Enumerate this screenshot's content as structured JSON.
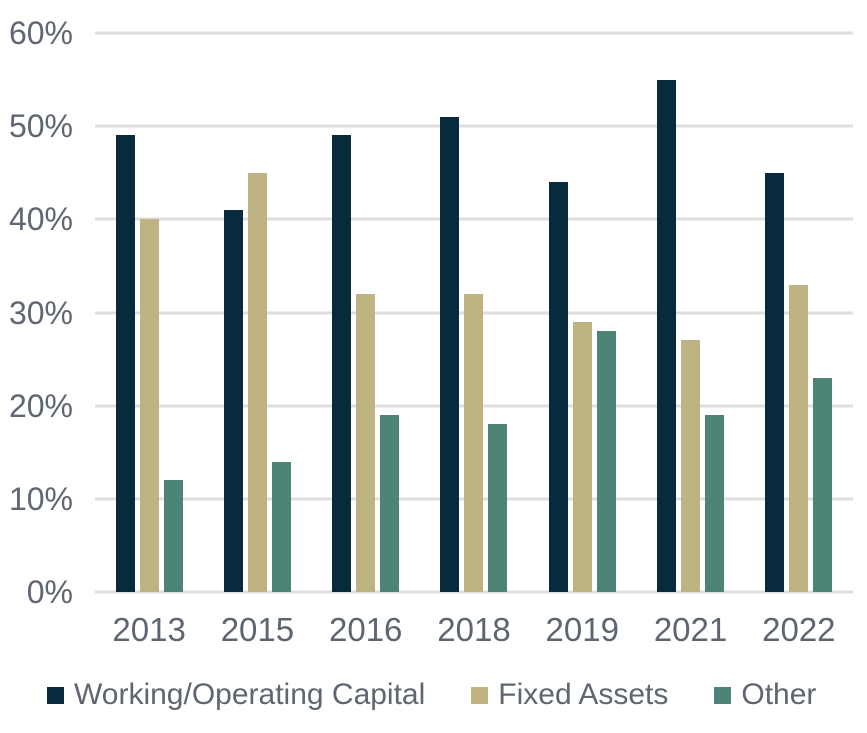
{
  "chart_data": {
    "type": "bar",
    "title": "",
    "categories": [
      "2013",
      "2015",
      "2016",
      "2018",
      "2019",
      "2021",
      "2022"
    ],
    "series": [
      {
        "name": "Working/Operating Capital",
        "color": "#072a3c",
        "values": [
          49,
          41,
          49,
          51,
          44,
          55,
          45
        ]
      },
      {
        "name": "Fixed Assets",
        "color": "#c0b383",
        "values": [
          40,
          45,
          32,
          32,
          29,
          27,
          33
        ]
      },
      {
        "name": "Other",
        "color": "#4e8478",
        "values": [
          12,
          14,
          19,
          18,
          28,
          19,
          23
        ]
      }
    ],
    "xlabel": "",
    "ylabel": "",
    "ylim": [
      0,
      60
    ],
    "y_tick_step": 10,
    "y_tick_labels": [
      "0%",
      "10%",
      "20%",
      "30%",
      "40%",
      "50%",
      "60%"
    ],
    "grid": true,
    "legend_position": "bottom"
  },
  "colors": {
    "gridline": "#dedede",
    "axis_text": "#5f6772",
    "legend_text": "#5e6671",
    "background": "#ffffff"
  }
}
